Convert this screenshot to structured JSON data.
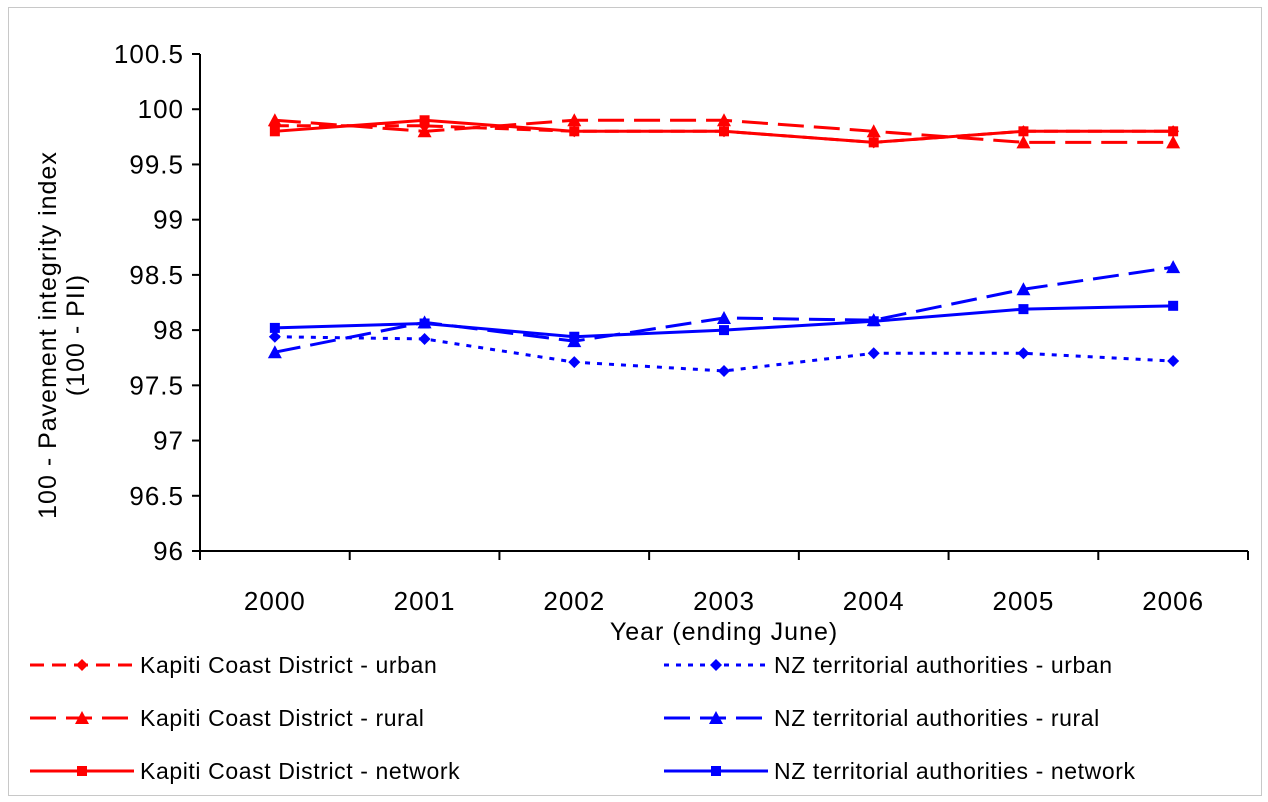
{
  "chart_data": {
    "type": "line",
    "title": "",
    "xlabel": "Year (ending June)",
    "ylabel_line1": "100 - Pavement integrity index",
    "ylabel_line2": "(100 - PII)",
    "categories": [
      "2000",
      "2001",
      "2002",
      "2003",
      "2004",
      "2005",
      "2006"
    ],
    "ylim": [
      96,
      100.5
    ],
    "yticks": [
      "96",
      "96.5",
      "97",
      "97.5",
      "98",
      "98.5",
      "99",
      "99.5",
      "100",
      "100.5"
    ],
    "grid": false,
    "legend_position": "bottom",
    "series": [
      {
        "name": "Kapiti Coast District - urban",
        "color": "#ff0000",
        "dash": "dash",
        "marker": "diamond",
        "values": [
          99.85,
          99.85,
          99.8,
          99.8,
          99.7,
          99.8,
          99.8
        ]
      },
      {
        "name": "Kapiti Coast District - rural",
        "color": "#ff0000",
        "dash": "longdash",
        "marker": "triangle",
        "values": [
          99.9,
          99.8,
          99.9,
          99.9,
          99.8,
          99.7,
          99.7
        ]
      },
      {
        "name": "Kapiti Coast District - network",
        "color": "#ff0000",
        "dash": "solid",
        "marker": "square",
        "values": [
          99.8,
          99.9,
          99.8,
          99.8,
          99.7,
          99.8,
          99.8
        ]
      },
      {
        "name": "NZ territorial authorities - urban",
        "color": "#0000ff",
        "dash": "dot",
        "marker": "diamond",
        "values": [
          97.94,
          97.92,
          97.71,
          97.63,
          97.79,
          97.79,
          97.72
        ]
      },
      {
        "name": "NZ territorial authorities - rural",
        "color": "#0000ff",
        "dash": "longdash",
        "marker": "triangle",
        "values": [
          97.8,
          98.07,
          97.9,
          98.11,
          98.09,
          98.37,
          98.57
        ]
      },
      {
        "name": "NZ territorial authorities - network",
        "color": "#0000ff",
        "dash": "solid",
        "marker": "square",
        "values": [
          98.02,
          98.06,
          97.94,
          98.0,
          98.08,
          98.19,
          98.22
        ]
      }
    ]
  }
}
